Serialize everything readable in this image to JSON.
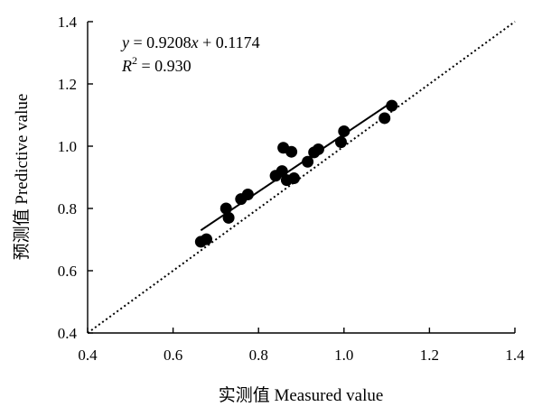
{
  "chart_data": {
    "type": "scatter",
    "xlabel": "实测值 Measured value",
    "ylabel": "预测值 Predictive value",
    "xlim": [
      0.4,
      1.4
    ],
    "ylim": [
      0.4,
      1.4
    ],
    "xticks": [
      "0.4",
      "0.6",
      "0.8",
      "1.0",
      "1.2",
      "1.4"
    ],
    "yticks": [
      "0.4",
      "0.6",
      "0.8",
      "1.0",
      "1.2",
      "1.4"
    ],
    "grid": false,
    "points": [
      {
        "x": 0.665,
        "y": 0.693
      },
      {
        "x": 0.678,
        "y": 0.701
      },
      {
        "x": 0.724,
        "y": 0.8
      },
      {
        "x": 0.73,
        "y": 0.77
      },
      {
        "x": 0.759,
        "y": 0.83
      },
      {
        "x": 0.775,
        "y": 0.845
      },
      {
        "x": 0.84,
        "y": 0.905
      },
      {
        "x": 0.855,
        "y": 0.92
      },
      {
        "x": 0.858,
        "y": 0.995
      },
      {
        "x": 0.866,
        "y": 0.891
      },
      {
        "x": 0.877,
        "y": 0.982
      },
      {
        "x": 0.883,
        "y": 0.897
      },
      {
        "x": 0.915,
        "y": 0.95
      },
      {
        "x": 0.93,
        "y": 0.98
      },
      {
        "x": 0.94,
        "y": 0.99
      },
      {
        "x": 0.993,
        "y": 1.013
      },
      {
        "x": 1.0,
        "y": 1.048
      },
      {
        "x": 1.095,
        "y": 1.09
      },
      {
        "x": 1.112,
        "y": 1.13
      }
    ],
    "fit_line": {
      "slope": 0.9208,
      "intercept": 0.1174,
      "x_range": [
        0.665,
        1.112
      ]
    },
    "reference_line": {
      "type": "1:1",
      "style": "dotted",
      "x_range": [
        0.4,
        1.4
      ]
    },
    "annotation": {
      "equation": {
        "y": "y",
        "eq_mid": " = 0.9208",
        "x": "x",
        "eq_end": " + 0.1174"
      },
      "r2": {
        "r": "R",
        "sup": "2",
        "rest": " = 0.930"
      }
    }
  }
}
